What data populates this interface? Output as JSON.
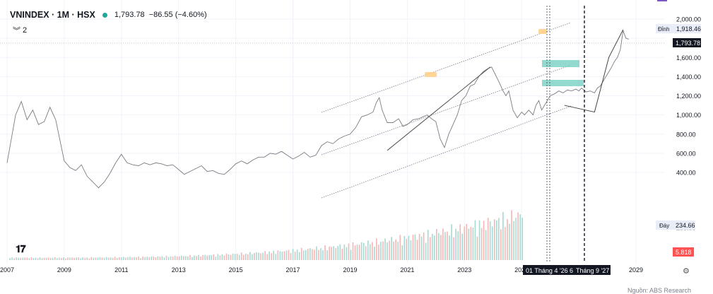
{
  "legend": {
    "symbol": "VNINDEX · 1M · HSX",
    "last": "1,793.78",
    "change": "−86.55 (−4.60%)",
    "indicator_count": "2"
  },
  "source": "Nguồn: ABS Research",
  "chart_data": {
    "type": "line",
    "x_axis_labels": [
      "2007",
      "2009",
      "2011",
      "2013",
      "2015",
      "2017",
      "2019",
      "2021",
      "2023",
      "2025",
      "2027",
      "2029"
    ],
    "y_ticks": [
      400,
      600,
      800,
      1000,
      1200,
      1400,
      1600,
      1800,
      2000
    ],
    "y_tick_labels": [
      "400.00",
      "600.00",
      "800.00",
      "1,000.00",
      "1,200.00",
      "1,400.00",
      "1,600.00",
      "1,793.78",
      "2,000.00"
    ],
    "ylim": [
      0,
      2100
    ],
    "grid": true,
    "series": [
      {
        "name": "VNINDEX",
        "points": [
          [
            2007.0,
            500
          ],
          [
            2007.3,
            1000
          ],
          [
            2007.5,
            1140
          ],
          [
            2007.7,
            950
          ],
          [
            2007.9,
            1050
          ],
          [
            2008.1,
            900
          ],
          [
            2008.3,
            930
          ],
          [
            2008.5,
            1080
          ],
          [
            2008.7,
            950
          ],
          [
            2009.0,
            520
          ],
          [
            2009.2,
            450
          ],
          [
            2009.4,
            420
          ],
          [
            2009.6,
            480
          ],
          [
            2009.8,
            360
          ],
          [
            2010.0,
            300
          ],
          [
            2010.2,
            240
          ],
          [
            2010.4,
            300
          ],
          [
            2010.6,
            390
          ],
          [
            2010.8,
            500
          ],
          [
            2011.0,
            590
          ],
          [
            2011.2,
            500
          ],
          [
            2011.4,
            480
          ],
          [
            2011.6,
            470
          ],
          [
            2011.8,
            500
          ],
          [
            2012.0,
            480
          ],
          [
            2012.2,
            500
          ],
          [
            2012.4,
            490
          ],
          [
            2012.6,
            470
          ],
          [
            2012.8,
            480
          ],
          [
            2013.0,
            430
          ],
          [
            2013.2,
            380
          ],
          [
            2013.4,
            410
          ],
          [
            2013.6,
            440
          ],
          [
            2013.8,
            470
          ],
          [
            2014.0,
            410
          ],
          [
            2014.2,
            420
          ],
          [
            2014.4,
            390
          ],
          [
            2014.6,
            380
          ],
          [
            2014.8,
            430
          ],
          [
            2015.0,
            490
          ],
          [
            2015.2,
            520
          ],
          [
            2015.4,
            490
          ],
          [
            2015.6,
            530
          ],
          [
            2015.8,
            560
          ],
          [
            2016.0,
            560
          ],
          [
            2016.2,
            600
          ],
          [
            2016.4,
            590
          ],
          [
            2016.6,
            620
          ],
          [
            2016.8,
            580
          ],
          [
            2017.0,
            540
          ],
          [
            2017.2,
            570
          ],
          [
            2017.4,
            610
          ],
          [
            2017.6,
            560
          ],
          [
            2017.8,
            580
          ],
          [
            2018.0,
            680
          ],
          [
            2018.2,
            720
          ],
          [
            2018.4,
            700
          ],
          [
            2018.6,
            750
          ],
          [
            2018.8,
            780
          ],
          [
            2019.0,
            800
          ],
          [
            2019.2,
            870
          ],
          [
            2019.4,
            980
          ],
          [
            2019.6,
            1000
          ],
          [
            2019.8,
            1030
          ],
          [
            2019.92,
            1130
          ],
          [
            2020.02,
            1180
          ],
          [
            2020.12,
            1050
          ],
          [
            2020.3,
            920
          ],
          [
            2020.5,
            920
          ],
          [
            2020.7,
            960
          ],
          [
            2020.85,
            880
          ],
          [
            2021.0,
            900
          ],
          [
            2021.2,
            950
          ],
          [
            2021.4,
            960
          ],
          [
            2021.55,
            980
          ],
          [
            2021.7,
            1000
          ],
          [
            2021.85,
            960
          ],
          [
            2022.0,
            930
          ],
          [
            2022.15,
            750
          ],
          [
            2022.3,
            660
          ],
          [
            2022.45,
            800
          ],
          [
            2022.6,
            900
          ],
          [
            2022.75,
            1000
          ],
          [
            2022.9,
            1150
          ],
          [
            2023.05,
            1200
          ],
          [
            2023.2,
            1300
          ],
          [
            2023.35,
            1320
          ],
          [
            2023.5,
            1400
          ],
          [
            2023.65,
            1450
          ],
          [
            2023.8,
            1480
          ],
          [
            2023.95,
            1500
          ],
          [
            2024.05,
            1440
          ],
          [
            2024.2,
            1350
          ],
          [
            2024.35,
            1250
          ],
          [
            2024.45,
            1200
          ],
          [
            2024.55,
            1250
          ],
          [
            2024.7,
            1050
          ],
          [
            2024.85,
            970
          ],
          [
            2025.0,
            1030
          ],
          [
            2025.1,
            1000
          ],
          [
            2025.25,
            1050
          ],
          [
            2025.4,
            1000
          ],
          [
            2025.5,
            1100
          ],
          [
            2025.6,
            1150
          ],
          [
            2025.7,
            1050
          ],
          [
            2025.8,
            1100
          ],
          [
            2025.9,
            1150
          ],
          [
            2026.0,
            1200
          ],
          [
            2026.15,
            1220
          ],
          [
            2026.3,
            1250
          ],
          [
            2026.45,
            1230
          ],
          [
            2026.6,
            1260
          ],
          [
            2026.75,
            1250
          ],
          [
            2026.9,
            1270
          ],
          [
            2027.0,
            1250
          ],
          [
            2027.1,
            1280
          ],
          [
            2027.25,
            1240
          ],
          [
            2027.4,
            1250
          ],
          [
            2027.55,
            1230
          ],
          [
            2027.65,
            1280
          ],
          [
            2027.75,
            1300
          ],
          [
            2027.85,
            1350
          ],
          [
            2027.95,
            1400
          ],
          [
            2028.05,
            1450
          ],
          [
            2028.15,
            1500
          ],
          [
            2028.25,
            1560
          ],
          [
            2028.35,
            1600
          ],
          [
            2028.45,
            1680
          ],
          [
            2028.55,
            1880
          ],
          [
            2028.65,
            1800
          ],
          [
            2028.75,
            1790
          ]
        ]
      }
    ],
    "annotations": {
      "peak_label": "Đỉnh",
      "peak_value": "1,918.46",
      "trough_label": "Đáy",
      "trough_value": "234.66",
      "badge_value": "5.818",
      "marker_labels": [
        "01 Tháng 4 '26",
        "6",
        "Tháng 9 '27"
      ]
    }
  },
  "colors": {
    "line": "#7c7c80",
    "up_volume": "#a7d9d2",
    "down_volume": "#f2b7b4",
    "zone": "#6dcdbf",
    "peak_marker": "#ffd08a",
    "badge_red": "#ff5252",
    "legend_dot": "#26a69a"
  }
}
